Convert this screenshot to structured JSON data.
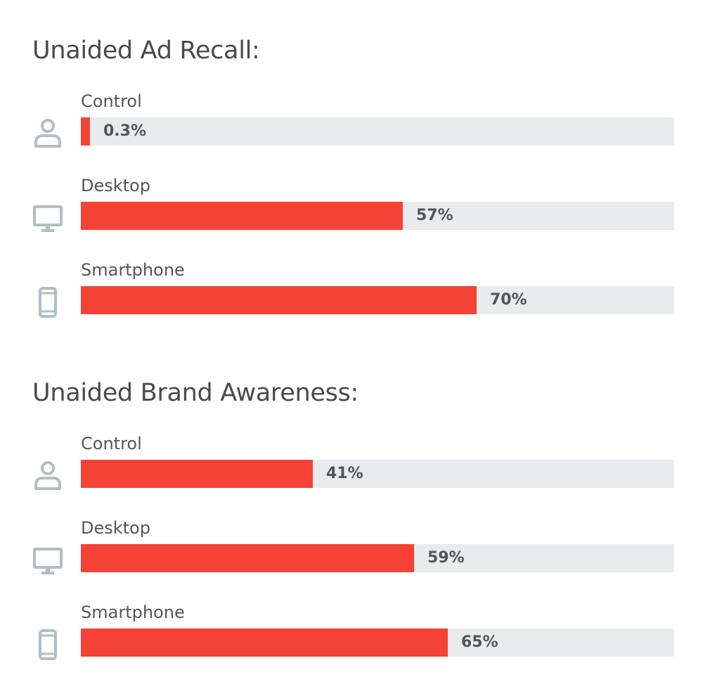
{
  "colors": {
    "bar": "#f44336",
    "track": "#e9ebee",
    "icon": "#b0bec5",
    "text": "#4a4a4a"
  },
  "chart_data": [
    {
      "type": "bar",
      "orientation": "horizontal",
      "title": "Unaided Ad Recall:",
      "categories": [
        "Control",
        "Desktop",
        "Smartphone"
      ],
      "icons": [
        "person-icon",
        "desktop-icon",
        "smartphone-icon"
      ],
      "values": [
        0.3,
        57,
        70
      ],
      "labels": [
        "0.3%",
        "57%",
        "70%"
      ],
      "unit": "%",
      "xlim": [
        0,
        105
      ],
      "grid": false,
      "legend": "none"
    },
    {
      "type": "bar",
      "orientation": "horizontal",
      "title": "Unaided Brand Awareness:",
      "categories": [
        "Control",
        "Desktop",
        "Smartphone"
      ],
      "icons": [
        "person-icon",
        "desktop-icon",
        "smartphone-icon"
      ],
      "values": [
        41,
        59,
        65
      ],
      "labels": [
        "41%",
        "59%",
        "65%"
      ],
      "unit": "%",
      "xlim": [
        0,
        105
      ],
      "grid": false,
      "legend": "none"
    }
  ]
}
